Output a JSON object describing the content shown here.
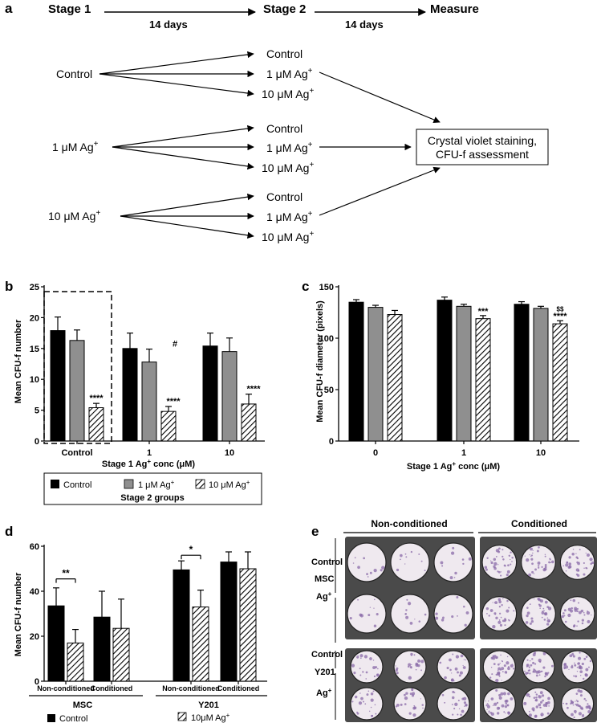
{
  "panel_a": {
    "letter": "a",
    "stage1": "Stage 1",
    "stage2": "Stage 2",
    "measure": "Measure",
    "days1": "14 days",
    "days2": "14 days",
    "stage1_groups": [
      "Control",
      "1 μM Ag",
      "10 μM Ag"
    ],
    "stage2_groups": [
      "Control",
      "1 μM Ag",
      "10 μM Ag"
    ],
    "superscript": "+",
    "outcome_line1": "Crystal violet staining,",
    "outcome_line2": "CFU-f assessment"
  },
  "panel_b": {
    "letter": "b",
    "ylabel": "Mean CFU-f number",
    "xlabel_pre": "Stage 1 Ag",
    "xlabel_post": " conc (μM)",
    "legend_title": "Stage 2 groups",
    "legend": [
      "Control",
      "1 μM Ag",
      "10 μM Ag"
    ],
    "annotations": [
      "#",
      "****",
      "****",
      "****"
    ]
  },
  "panel_c": {
    "letter": "c",
    "ylabel": "Mean CFU-f diameter (pixels)",
    "xlabel_pre": "Stage 1 Ag",
    "xlabel_post": " conc (μM)",
    "annotations": [
      "***",
      "$$",
      "****"
    ]
  },
  "panel_d": {
    "letter": "d",
    "ylabel": "Mean CFU-f number",
    "group_labels": [
      "MSC",
      "Y201"
    ],
    "legend": [
      "Control",
      "10μM Ag"
    ],
    "annotations": [
      "**",
      "*"
    ]
  },
  "panel_e": {
    "letter": "e",
    "col_labels": [
      "Non-conditioned",
      "Conditioned"
    ],
    "row_labels": [
      "Control",
      "MSC",
      "Ag",
      "Control",
      "Y201",
      "Ag"
    ],
    "colors": {
      "plate_bg": "#4a4a4a",
      "well_bg": "#efe9ef",
      "stain": "#8a6aa8"
    }
  },
  "chart_data": [
    {
      "type": "bar",
      "categories": [
        "Control",
        "1",
        "10"
      ],
      "series": [
        {
          "name": "Control",
          "values": [
            17.9,
            15.0,
            15.4
          ],
          "errors": [
            2.2,
            2.5,
            2.1
          ]
        },
        {
          "name": "1 μM Ag+",
          "values": [
            16.3,
            12.8,
            14.5
          ],
          "errors": [
            1.7,
            2.1,
            2.2
          ]
        },
        {
          "name": "10 μM Ag+",
          "values": [
            5.4,
            4.8,
            6.0
          ],
          "errors": [
            0.7,
            0.8,
            1.6
          ]
        }
      ],
      "yticks": [
        0,
        5,
        10,
        15,
        20,
        25
      ],
      "ylim": [
        0,
        25
      ]
    },
    {
      "type": "bar",
      "categories": [
        "0",
        "1",
        "10"
      ],
      "series": [
        {
          "name": "Control",
          "values": [
            135,
            137,
            133
          ],
          "errors": [
            2.5,
            3,
            2.5
          ]
        },
        {
          "name": "1 μM Ag+",
          "values": [
            130,
            131,
            129
          ],
          "errors": [
            2,
            2,
            2
          ]
        },
        {
          "name": "10 μM Ag+",
          "values": [
            123,
            119,
            114
          ],
          "errors": [
            4,
            3,
            3
          ]
        }
      ],
      "yticks": [
        0,
        50,
        100,
        150
      ],
      "ylim": [
        0,
        150
      ]
    },
    {
      "type": "bar",
      "categories": [
        "Non-conditioned",
        "Conditioned",
        "Non-conditioned",
        "Conditioned"
      ],
      "series": [
        {
          "name": "Control",
          "values": [
            33.5,
            28.5,
            49.5,
            53
          ],
          "errors": [
            8,
            11.5,
            4,
            4.5
          ]
        },
        {
          "name": "10μM Ag+",
          "values": [
            17,
            23.5,
            33,
            50
          ],
          "errors": [
            6,
            13,
            7.5,
            7.5
          ]
        }
      ],
      "yticks": [
        0,
        20,
        40,
        60
      ],
      "ylim": [
        0,
        60
      ]
    }
  ]
}
